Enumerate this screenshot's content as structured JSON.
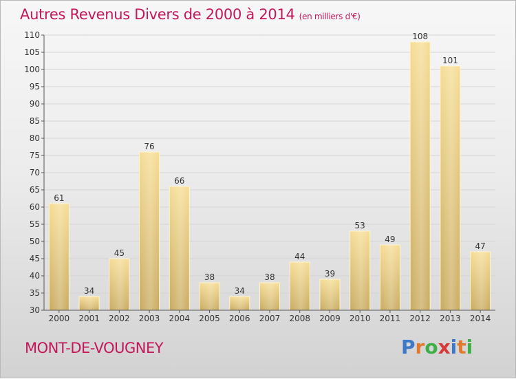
{
  "title": "Autres Revenus Divers de 2000 à 2014",
  "unit": "(en milliers d'€)",
  "commune": "MONT-DE-VOUGNEY",
  "logo": {
    "text": "Proxiti",
    "colors": [
      "#3d78c9",
      "#e07a2e",
      "#3fae49",
      "#d63a3a",
      "#3d78c9",
      "#e07a2e",
      "#3fae49"
    ]
  },
  "chart_data": {
    "type": "bar",
    "categories": [
      "2000",
      "2001",
      "2002",
      "2003",
      "2004",
      "2005",
      "2006",
      "2007",
      "2008",
      "2009",
      "2010",
      "2011",
      "2012",
      "2013",
      "2014"
    ],
    "values": [
      61,
      34,
      45,
      76,
      66,
      38,
      34,
      38,
      44,
      39,
      53,
      49,
      108,
      101,
      47
    ],
    "ylim": [
      30,
      110
    ],
    "yticks": [
      30,
      35,
      40,
      45,
      50,
      55,
      60,
      65,
      70,
      75,
      80,
      85,
      90,
      95,
      100,
      105,
      110
    ],
    "bar_color": "#e8cc7a",
    "grid": true
  }
}
